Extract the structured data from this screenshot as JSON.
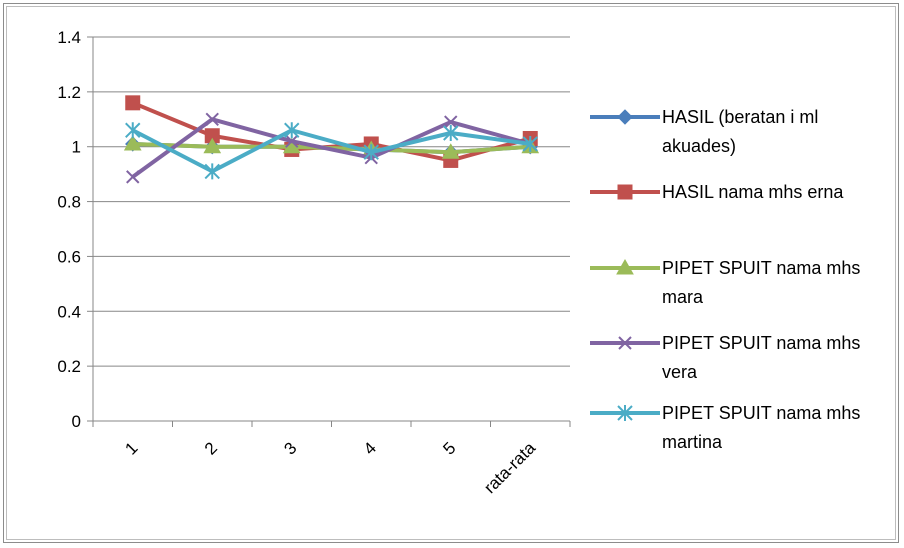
{
  "chart_data": {
    "type": "line",
    "categories": [
      "1",
      "2",
      "3",
      "4",
      "5",
      "rata-rata"
    ],
    "ylim": [
      0,
      1.4
    ],
    "yticks": [
      "0",
      "0.2",
      "0.4",
      "0.6",
      "0.8",
      "1",
      "1.2",
      "1.4"
    ],
    "grid": true,
    "legend_position": "right",
    "series": [
      {
        "name": "HASIL (beratan i ml akuades)",
        "name_lines": [
          "HASIL (beratan i ml",
          "akuades)"
        ],
        "values": [
          1.01,
          1.0,
          1.0,
          0.99,
          0.98,
          1.0
        ],
        "color": "#4a7ebb",
        "marker": "diamond"
      },
      {
        "name": "HASIL nama mhs erna",
        "name_lines": [
          "HASIL nama mhs erna"
        ],
        "values": [
          1.16,
          1.04,
          0.99,
          1.01,
          0.95,
          1.03
        ],
        "color": "#c0504d",
        "marker": "square"
      },
      {
        "name": "PIPET SPUIT nama mhs mara",
        "name_lines": [
          "PIPET SPUIT nama mhs",
          "mara"
        ],
        "values": [
          1.01,
          1.0,
          1.0,
          0.99,
          0.98,
          1.0
        ],
        "color": "#9bbb59",
        "marker": "triangle"
      },
      {
        "name": "PIPET SPUIT nama mhs vera",
        "name_lines": [
          "PIPET SPUIT nama mhs",
          "vera"
        ],
        "values": [
          0.89,
          1.1,
          1.02,
          0.96,
          1.09,
          1.01
        ],
        "color": "#8064a2",
        "marker": "x"
      },
      {
        "name": "PIPET SPUIT nama mhs martina",
        "name_lines": [
          "PIPET SPUIT nama mhs",
          "martina"
        ],
        "values": [
          1.06,
          0.91,
          1.06,
          0.98,
          1.05,
          1.01
        ],
        "color": "#4bacc6",
        "marker": "star"
      }
    ]
  }
}
